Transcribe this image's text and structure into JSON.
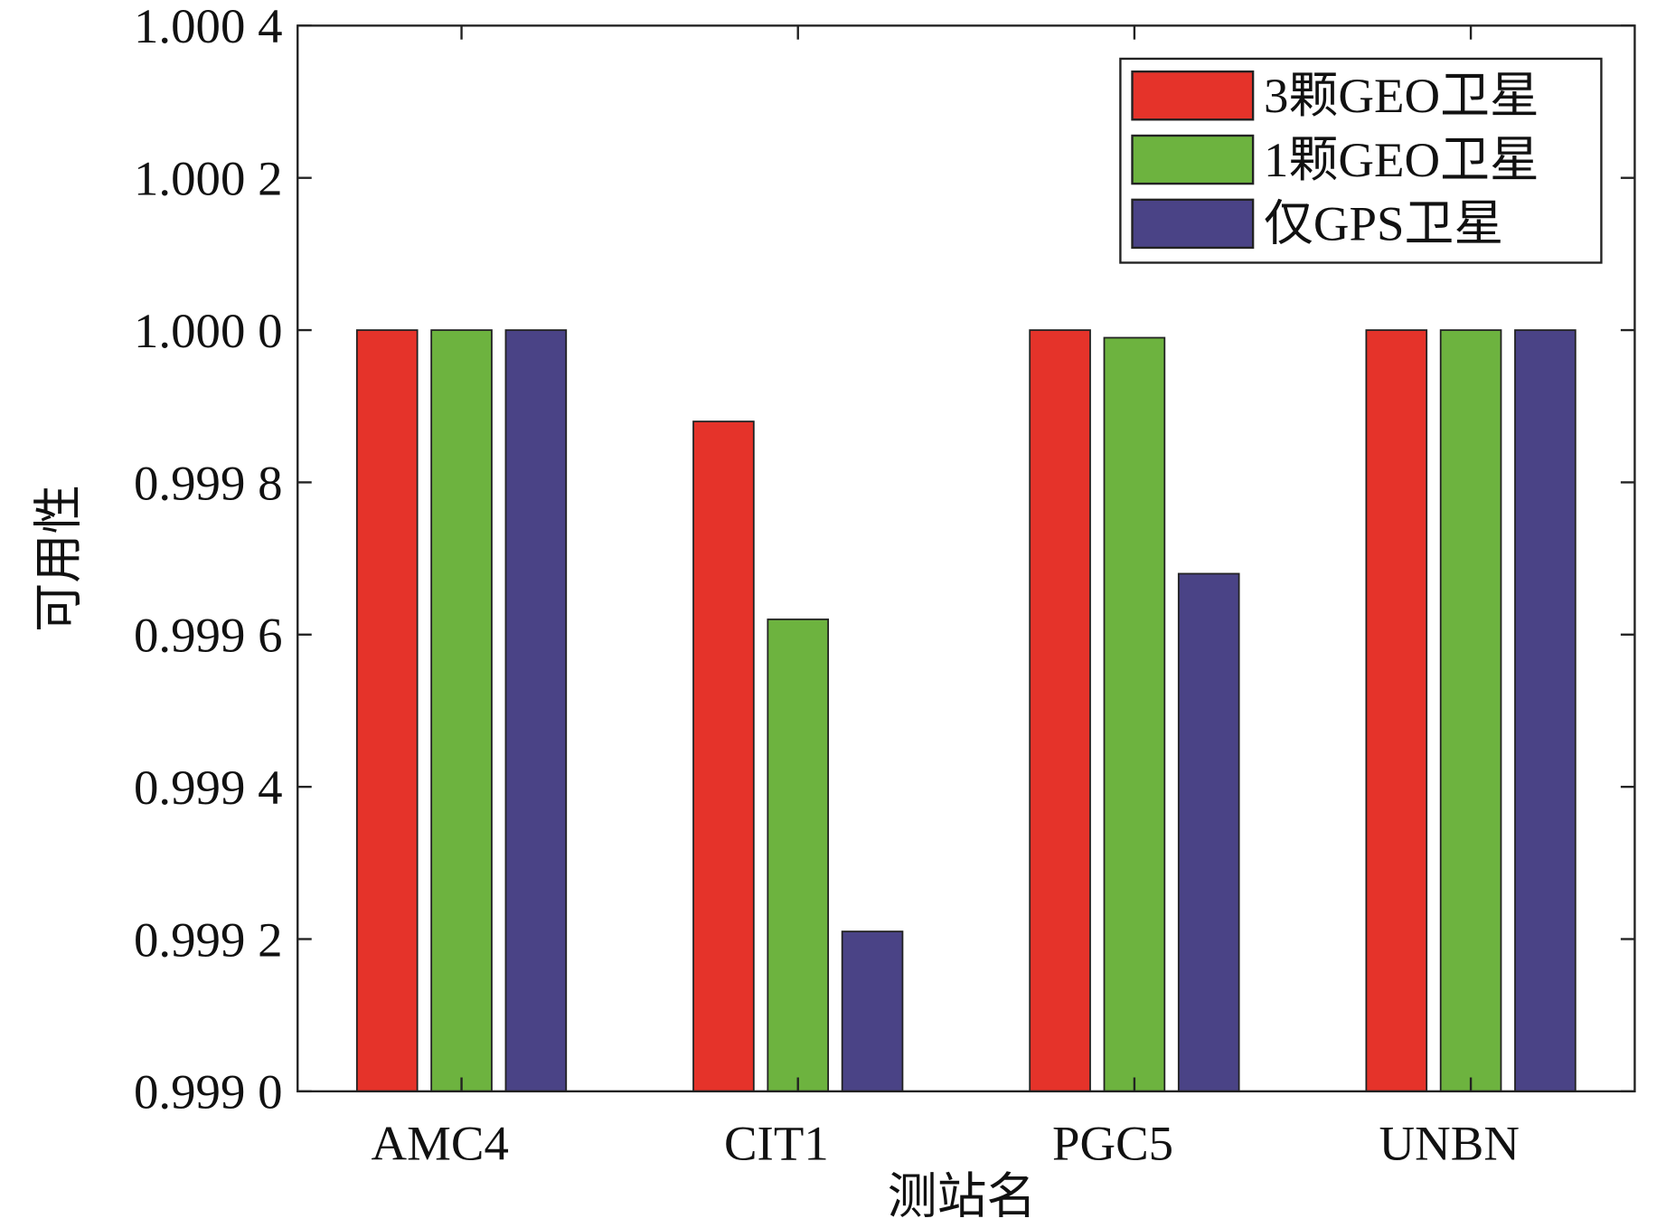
{
  "chart_data": {
    "type": "bar",
    "title": "",
    "xlabel": "测站名",
    "ylabel": "可用性",
    "categories": [
      "AMC4",
      "CIT1",
      "PGC5",
      "UNBN"
    ],
    "series": [
      {
        "name": "3颗GEO卫星",
        "color": "#e5332a",
        "values": [
          1.0,
          0.99988,
          1.0,
          1.0
        ]
      },
      {
        "name": "1颗GEO卫星",
        "color": "#6db33f",
        "values": [
          1.0,
          0.99962,
          0.99999,
          1.0
        ]
      },
      {
        "name": "仅GPS卫星",
        "color": "#4a4386",
        "values": [
          1.0,
          0.99921,
          0.99968,
          1.0
        ]
      }
    ],
    "ylim": [
      0.999,
      1.0004
    ],
    "yticks": [
      0.999,
      0.9992,
      0.9994,
      0.9996,
      0.9998,
      1.0,
      1.0002,
      1.0004
    ],
    "ytick_labels": [
      "0.999 0",
      "0.999 2",
      "0.999 4",
      "0.999 6",
      "0.999 8",
      "1.000 0",
      "1.000 2",
      "1.000 4"
    ],
    "grid": false,
    "legend_position": "top-right"
  }
}
